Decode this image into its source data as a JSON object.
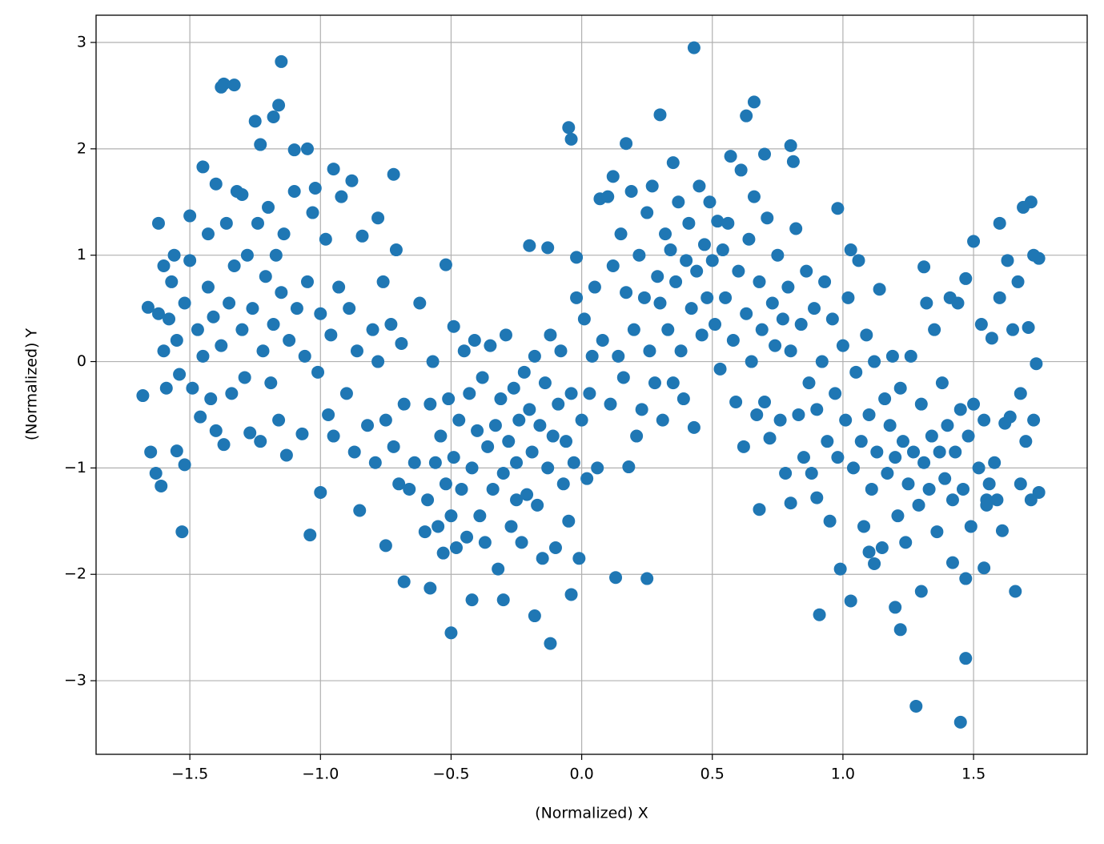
{
  "chart_data": {
    "type": "scatter",
    "xlabel": "(Normalized) X",
    "ylabel": "(Normalized) Y",
    "color": "#1f77b4",
    "grid": true,
    "xlim": [
      -1.859,
      1.935
    ],
    "ylim": [
      -3.692,
      3.256
    ],
    "xticks": [
      {
        "value": -1.5,
        "label": "−1.5"
      },
      {
        "value": -1.0,
        "label": "−1.0"
      },
      {
        "value": -0.5,
        "label": "−0.5"
      },
      {
        "value": 0,
        "label": "0.0"
      },
      0.5,
      {
        "value": 1.0,
        "label": "1.0"
      },
      1.5
    ],
    "yticks": [
      {
        "value": -3,
        "label": "−3"
      },
      {
        "value": -2,
        "label": "−2"
      },
      {
        "value": -1,
        "label": "−1"
      },
      0,
      1,
      2,
      3
    ],
    "x": [
      -1.68,
      -1.66,
      -1.65,
      -1.63,
      -1.61,
      -1.62,
      -1.6,
      -1.58,
      -1.55,
      -1.53,
      -1.52,
      -1.5,
      -1.45,
      -1.43,
      -1.4,
      -1.38,
      -1.37,
      -1.33,
      -1.3,
      -1.25,
      -1.23,
      -1.18,
      -1.16,
      -1.15,
      -1.1,
      -1.05,
      -1.02,
      -1.0,
      -1.04,
      -0.95,
      -0.88,
      -0.85,
      -0.72,
      -0.78,
      -0.7,
      -0.68,
      -0.75,
      -0.58,
      -0.5,
      -0.52,
      -0.49,
      -0.42,
      -0.3,
      -0.25,
      -0.2,
      -0.18,
      -0.12,
      -0.13,
      -0.05,
      -0.04,
      -0.02,
      -0.04,
      0.07,
      0.12,
      0.17,
      0.25,
      0.13,
      0.3,
      0.35,
      0.43,
      0.52,
      0.57,
      0.63,
      0.66,
      0.7,
      0.8,
      0.81,
      0.68,
      0.8,
      0.9,
      0.91,
      0.98,
      0.99,
      1.03,
      1.03,
      1.1,
      1.12,
      1.2,
      1.22,
      1.28,
      1.3,
      1.31,
      1.42,
      1.45,
      1.47,
      1.47,
      1.5,
      1.54,
      1.6,
      1.66,
      1.72,
      1.75,
      1.75,
      1.74,
      1.68,
      1.73,
      1.62,
      1.55,
      -1.62,
      -1.6,
      -1.59,
      -1.57,
      -1.56,
      -1.55,
      -1.54,
      -1.52,
      -1.5,
      -1.49,
      -1.47,
      -1.46,
      -1.45,
      -1.43,
      -1.42,
      -1.41,
      -1.4,
      -1.38,
      -1.37,
      -1.36,
      -1.35,
      -1.34,
      -1.33,
      -1.32,
      -1.3,
      -1.29,
      -1.28,
      -1.27,
      -1.26,
      -1.24,
      -1.23,
      -1.22,
      -1.21,
      -1.2,
      -1.19,
      -1.18,
      -1.17,
      -1.16,
      -1.15,
      -1.14,
      -1.13,
      -1.12,
      -1.1,
      -1.09,
      -1.07,
      -1.06,
      -1.05,
      -1.03,
      -1.01,
      -1.0,
      -0.98,
      -0.97,
      -0.96,
      -0.95,
      -0.93,
      -0.92,
      -0.9,
      -0.89,
      -0.87,
      -0.86,
      -0.84,
      -0.82,
      -0.8,
      -0.79,
      -0.78,
      -0.76,
      -0.75,
      -0.73,
      -0.72,
      -0.71,
      -0.69,
      -0.68,
      -0.66,
      -0.64,
      -0.62,
      -0.6,
      -0.59,
      -0.58,
      -0.57,
      -0.56,
      -0.55,
      -0.54,
      -0.53,
      -0.52,
      -0.51,
      -0.5,
      -0.49,
      -0.48,
      -0.47,
      -0.46,
      -0.45,
      -0.44,
      -0.43,
      -0.42,
      -0.41,
      -0.4,
      -0.39,
      -0.38,
      -0.37,
      -0.36,
      -0.35,
      -0.34,
      -0.33,
      -0.32,
      -0.31,
      -0.3,
      -0.29,
      -0.28,
      -0.27,
      -0.26,
      -0.25,
      -0.24,
      -0.23,
      -0.22,
      -0.21,
      -0.2,
      -0.19,
      -0.18,
      -0.17,
      -0.16,
      -0.15,
      -0.14,
      -0.13,
      -0.12,
      -0.11,
      -0.1,
      -0.09,
      -0.08,
      -0.07,
      -0.06,
      -0.05,
      -0.04,
      -0.03,
      -0.02,
      -0.01,
      0.0,
      0.01,
      0.02,
      0.03,
      0.04,
      0.05,
      0.06,
      0.08,
      0.1,
      0.11,
      0.12,
      0.14,
      0.15,
      0.16,
      0.17,
      0.18,
      0.19,
      0.2,
      0.21,
      0.22,
      0.23,
      0.24,
      0.25,
      0.26,
      0.27,
      0.28,
      0.29,
      0.3,
      0.31,
      0.32,
      0.33,
      0.34,
      0.35,
      0.36,
      0.37,
      0.38,
      0.39,
      0.4,
      0.41,
      0.42,
      0.43,
      0.44,
      0.45,
      0.46,
      0.47,
      0.48,
      0.49,
      0.5,
      0.51,
      0.53,
      0.54,
      0.55,
      0.56,
      0.58,
      0.59,
      0.6,
      0.61,
      0.62,
      0.63,
      0.64,
      0.65,
      0.66,
      0.67,
      0.68,
      0.69,
      0.7,
      0.71,
      0.72,
      0.73,
      0.74,
      0.75,
      0.76,
      0.77,
      0.78,
      0.79,
      0.8,
      0.82,
      0.83,
      0.84,
      0.85,
      0.86,
      0.87,
      0.88,
      0.89,
      0.9,
      0.92,
      0.93,
      0.94,
      0.95,
      0.96,
      0.97,
      0.98,
      1.0,
      1.01,
      1.02,
      1.04,
      1.05,
      1.06,
      1.07,
      1.08,
      1.09,
      1.1,
      1.11,
      1.12,
      1.13,
      1.14,
      1.15,
      1.16,
      1.17,
      1.18,
      1.19,
      1.2,
      1.21,
      1.22,
      1.23,
      1.24,
      1.25,
      1.26,
      1.27,
      1.29,
      1.3,
      1.31,
      1.32,
      1.33,
      1.34,
      1.35,
      1.36,
      1.37,
      1.38,
      1.39,
      1.4,
      1.41,
      1.42,
      1.43,
      1.44,
      1.45,
      1.46,
      1.47,
      1.48,
      1.49,
      1.5,
      1.52,
      1.53,
      1.54,
      1.55,
      1.56,
      1.57,
      1.58,
      1.59,
      1.6,
      1.61,
      1.63,
      1.64,
      1.65,
      1.67,
      1.68,
      1.69,
      1.7,
      1.71,
      1.72,
      1.73
    ],
    "values": [
      -0.32,
      0.51,
      -0.85,
      -1.05,
      -1.17,
      1.3,
      0.9,
      0.4,
      -0.84,
      -1.6,
      -0.97,
      1.37,
      1.83,
      0.7,
      1.67,
      2.58,
      2.61,
      2.6,
      1.57,
      2.26,
      2.04,
      2.3,
      2.41,
      2.82,
      1.99,
      2.0,
      1.63,
      -1.23,
      -1.63,
      1.81,
      1.7,
      -1.4,
      1.76,
      1.35,
      -1.15,
      -2.07,
      -1.73,
      -2.13,
      -2.55,
      0.91,
      0.33,
      -2.24,
      -2.24,
      -1.3,
      1.09,
      -2.39,
      -2.65,
      1.07,
      2.2,
      2.09,
      0.98,
      -2.19,
      1.53,
      1.74,
      2.05,
      -2.04,
      -2.03,
      2.32,
      1.87,
      2.95,
      1.32,
      1.93,
      2.31,
      2.44,
      1.95,
      2.03,
      1.88,
      -1.39,
      -1.33,
      -1.28,
      -2.38,
      1.44,
      -1.95,
      -2.25,
      1.05,
      -1.79,
      -1.9,
      -2.31,
      -2.52,
      -3.24,
      -2.16,
      0.89,
      -1.89,
      -3.39,
      -2.79,
      -2.04,
      1.13,
      -1.94,
      1.3,
      -2.16,
      1.5,
      0.97,
      -1.23,
      -0.02,
      -1.15,
      -0.55,
      -0.58,
      -1.3,
      0.45,
      0.1,
      -0.25,
      0.75,
      1.0,
      0.2,
      -0.12,
      0.55,
      0.95,
      -0.25,
      0.3,
      -0.52,
      0.05,
      1.2,
      -0.35,
      0.42,
      -0.65,
      0.15,
      -0.78,
      1.3,
      0.55,
      -0.3,
      0.9,
      1.6,
      0.3,
      -0.15,
      1.0,
      -0.67,
      0.5,
      1.3,
      -0.75,
      0.1,
      0.8,
      1.45,
      -0.2,
      0.35,
      1.0,
      -0.55,
      0.65,
      1.2,
      -0.88,
      0.2,
      1.6,
      0.5,
      -0.68,
      0.05,
      0.75,
      1.4,
      -0.1,
      0.45,
      1.15,
      -0.5,
      0.25,
      -0.7,
      0.7,
      1.55,
      -0.3,
      0.5,
      -0.85,
      0.1,
      1.18,
      -0.6,
      0.3,
      -0.95,
      0.0,
      0.75,
      -0.55,
      0.35,
      -0.8,
      1.05,
      0.17,
      -0.4,
      -1.2,
      -0.95,
      0.55,
      -1.6,
      -1.3,
      -0.4,
      0.0,
      -0.95,
      -1.55,
      -0.7,
      -1.8,
      -1.15,
      -0.35,
      -1.45,
      -0.9,
      -1.75,
      -0.55,
      -1.2,
      0.1,
      -1.65,
      -0.3,
      -1.0,
      0.2,
      -0.65,
      -1.45,
      -0.15,
      -1.7,
      -0.8,
      0.15,
      -1.2,
      -0.6,
      -1.95,
      -0.35,
      -1.05,
      0.25,
      -0.75,
      -1.55,
      -0.25,
      -0.95,
      -0.55,
      -1.7,
      -0.1,
      -1.25,
      -0.45,
      -0.85,
      0.05,
      -1.35,
      -0.6,
      -1.85,
      -0.2,
      -1.0,
      0.25,
      -0.7,
      -1.75,
      -0.4,
      0.1,
      -1.15,
      -0.75,
      -1.5,
      -0.3,
      -0.95,
      0.6,
      -1.85,
      -0.55,
      0.4,
      -1.1,
      -0.3,
      0.05,
      0.7,
      -1.0,
      0.2,
      1.55,
      -0.4,
      0.9,
      0.05,
      1.2,
      -0.15,
      0.65,
      -0.99,
      1.6,
      0.3,
      -0.7,
      1.0,
      -0.45,
      0.6,
      1.4,
      0.1,
      1.65,
      -0.2,
      0.8,
      0.55,
      -0.55,
      1.2,
      0.3,
      1.05,
      -0.2,
      0.75,
      1.5,
      0.1,
      -0.35,
      0.95,
      1.3,
      0.5,
      -0.62,
      0.85,
      1.65,
      0.25,
      1.1,
      0.6,
      1.5,
      0.95,
      0.35,
      -0.07,
      1.05,
      0.6,
      1.3,
      0.2,
      -0.38,
      0.85,
      1.8,
      -0.8,
      0.45,
      1.15,
      0.0,
      1.55,
      -0.5,
      0.75,
      0.3,
      -0.38,
      1.35,
      -0.72,
      0.55,
      0.15,
      1.0,
      -0.55,
      0.4,
      -1.05,
      0.7,
      0.1,
      1.25,
      -0.5,
      0.35,
      -0.9,
      0.85,
      -0.2,
      -1.05,
      0.5,
      -0.45,
      0.0,
      0.75,
      -0.75,
      -1.5,
      0.4,
      -0.3,
      -0.9,
      0.15,
      -0.55,
      0.6,
      -1.0,
      -0.1,
      0.95,
      -0.75,
      -1.55,
      0.25,
      -0.5,
      -1.2,
      0.0,
      -0.85,
      0.68,
      -1.75,
      -0.35,
      -1.05,
      -0.6,
      0.05,
      -0.9,
      -1.45,
      -0.25,
      -0.75,
      -1.7,
      -1.15,
      0.05,
      -0.85,
      -1.35,
      -0.4,
      -0.95,
      0.55,
      -1.2,
      -0.7,
      0.3,
      -1.6,
      -0.85,
      -0.2,
      -1.1,
      -0.6,
      0.6,
      -1.3,
      -0.85,
      0.55,
      -0.45,
      -1.2,
      0.78,
      -0.7,
      -1.55,
      -0.4,
      -1.0,
      0.35,
      -0.55,
      -1.35,
      -1.15,
      0.22,
      -0.95,
      -1.3,
      0.6,
      -1.59,
      0.95,
      -0.52,
      0.3,
      0.75,
      -0.3,
      1.45,
      -0.75,
      0.32,
      -1.3,
      1.0
    ]
  }
}
